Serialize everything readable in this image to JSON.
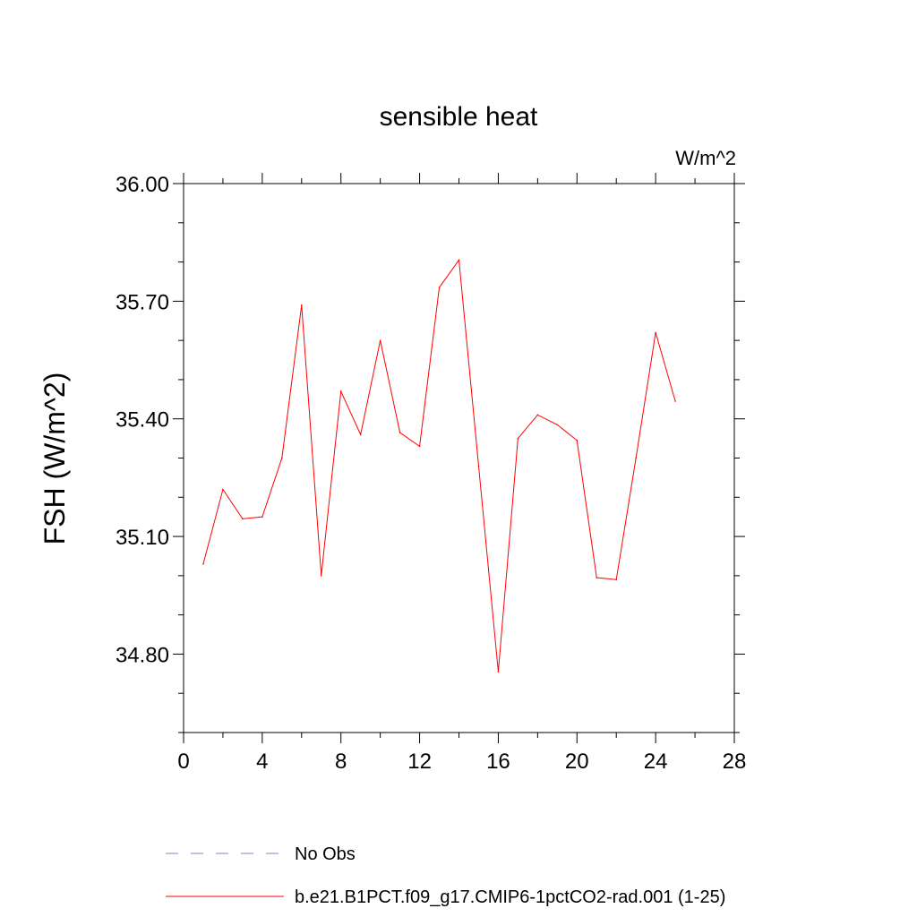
{
  "chart_data": {
    "type": "line",
    "title": "sensible heat",
    "units_label": "W/m^2",
    "xlabel": "",
    "ylabel": "FSH  (W/m^2)",
    "xlim": [
      0,
      28
    ],
    "ylim": [
      34.6,
      36.0
    ],
    "x_ticks": [
      0,
      4,
      8,
      12,
      16,
      20,
      24,
      28
    ],
    "y_ticks": [
      34.8,
      35.1,
      35.4,
      35.7,
      36.0
    ],
    "y_tick_labels": [
      "34.80",
      "35.10",
      "35.40",
      "35.70",
      "36.00"
    ],
    "y_minor_step": 0.1,
    "x_minor_step": 2,
    "grid": false,
    "legend_position": "bottom",
    "series": [
      {
        "name": "b.e21.B1PCT.f09_g17.CMIP6-1pctCO2-rad.001 (1-25)",
        "color": "#ff0000",
        "style": "solid",
        "x": [
          1,
          2,
          3,
          4,
          5,
          6,
          7,
          8,
          9,
          10,
          11,
          12,
          13,
          14,
          15,
          16,
          17,
          18,
          19,
          20,
          21,
          22,
          23,
          24,
          25
        ],
        "y": [
          35.03,
          35.22,
          35.145,
          35.15,
          35.3,
          35.69,
          35.0,
          35.47,
          35.36,
          35.6,
          35.365,
          35.33,
          35.735,
          35.805,
          35.28,
          34.755,
          35.35,
          35.41,
          35.385,
          35.345,
          34.995,
          34.99,
          35.3,
          35.62,
          35.445
        ]
      }
    ],
    "legend": [
      {
        "label": "No Obs",
        "color": "#8080c0",
        "style": "dashed"
      },
      {
        "label": "b.e21.B1PCT.f09_g17.CMIP6-1pctCO2-rad.001 (1-25)",
        "color": "#ff0000",
        "style": "solid"
      }
    ]
  }
}
